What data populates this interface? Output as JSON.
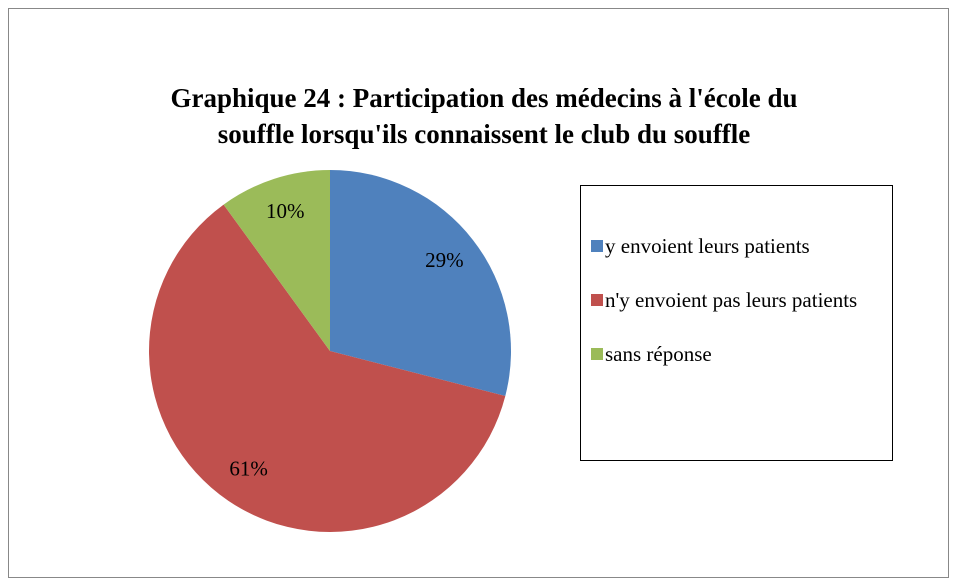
{
  "chart_data": {
    "type": "pie",
    "title": [
      "Graphique 24 : Participation des médecins à l'école du",
      "souffle lorsqu'ils connaissent le club du souffle"
    ],
    "categories": [
      "y envoient leurs patients",
      "n'y envoient pas leurs patients",
      "sans réponse"
    ],
    "values": [
      29,
      61,
      10
    ],
    "value_labels": [
      "29%",
      "61%",
      "10%"
    ],
    "colors": [
      "#4f81bd",
      "#c0504d",
      "#9bbb59"
    ],
    "legend": "right"
  }
}
